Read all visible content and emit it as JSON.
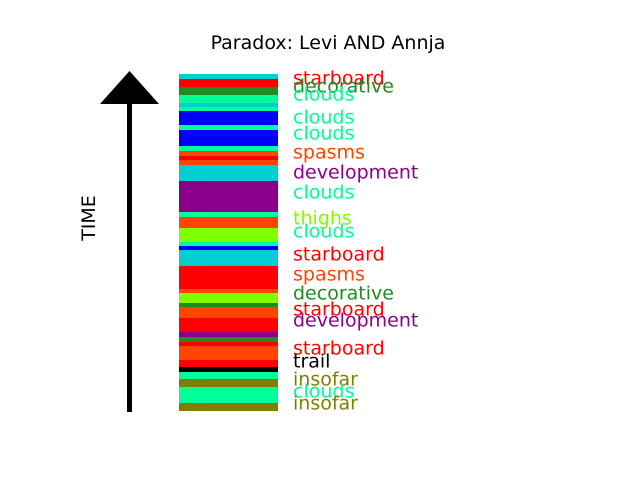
{
  "title": "Paradox: Levi AND Annja",
  "axis_label": "TIME",
  "colors": {
    "starboard": "#ff0000",
    "decorative": "#228b22",
    "clouds": "#00ff99",
    "spasms": "#ff4500",
    "development": "#8b008b",
    "thighs": "#7fff00",
    "trail": "#000000",
    "insofar": "#808000",
    "cyan": "#00ced1",
    "blue": "#0000ff"
  },
  "stripes": [
    {
      "color_key": "cyan"
    },
    {
      "color_key": "starboard"
    },
    {
      "color_key": "decorative"
    },
    {
      "color_key": "clouds"
    },
    {
      "color_key": "cyan"
    },
    {
      "color_key": "clouds"
    },
    {
      "color_key": "blue"
    },
    {
      "color_key": "clouds"
    },
    {
      "color_key": "blue"
    },
    {
      "color_key": "clouds"
    },
    {
      "color_key": "spasms"
    },
    {
      "color_key": "starboard"
    },
    {
      "color_key": "spasms"
    },
    {
      "color_key": "cyan"
    },
    {
      "color_key": "development"
    },
    {
      "color_key": "clouds"
    },
    {
      "color_key": "spasms"
    },
    {
      "color_key": "thighs"
    },
    {
      "color_key": "clouds"
    },
    {
      "color_key": "blue"
    },
    {
      "color_key": "cyan"
    },
    {
      "color_key": "starboard"
    },
    {
      "color_key": "spasms"
    },
    {
      "color_key": "thighs"
    },
    {
      "color_key": "decorative"
    },
    {
      "color_key": "spasms"
    },
    {
      "color_key": "starboard"
    },
    {
      "color_key": "development"
    },
    {
      "color_key": "decorative"
    },
    {
      "color_key": "starboard"
    },
    {
      "color_key": "spasms"
    },
    {
      "color_key": "starboard"
    },
    {
      "color_key": "trail"
    },
    {
      "color_key": "clouds"
    },
    {
      "color_key": "insofar"
    },
    {
      "color_key": "clouds"
    },
    {
      "color_key": "insofar"
    }
  ],
  "labels": [
    {
      "text": "starboard",
      "color_key": "starboard"
    },
    {
      "text": "decorative",
      "color_key": "decorative"
    },
    {
      "text": "clouds",
      "color_key": "clouds"
    },
    {
      "text": "clouds",
      "color_key": "clouds"
    },
    {
      "text": "clouds",
      "color_key": "clouds"
    },
    {
      "text": "spasms",
      "color_key": "spasms"
    },
    {
      "text": "development",
      "color_key": "development"
    },
    {
      "text": "clouds",
      "color_key": "clouds"
    },
    {
      "text": "thighs",
      "color_key": "thighs"
    },
    {
      "text": "clouds",
      "color_key": "clouds"
    },
    {
      "text": "starboard",
      "color_key": "starboard"
    },
    {
      "text": "spasms",
      "color_key": "spasms"
    },
    {
      "text": "decorative",
      "color_key": "decorative"
    },
    {
      "text": "starboard",
      "color_key": "starboard"
    },
    {
      "text": "development",
      "color_key": "development"
    },
    {
      "text": "starboard",
      "color_key": "starboard"
    },
    {
      "text": "trail",
      "color_key": "trail"
    },
    {
      "text": "insofar",
      "color_key": "insofar"
    },
    {
      "text": "clouds",
      "color_key": "clouds"
    },
    {
      "text": "insofar",
      "color_key": "insofar"
    }
  ]
}
